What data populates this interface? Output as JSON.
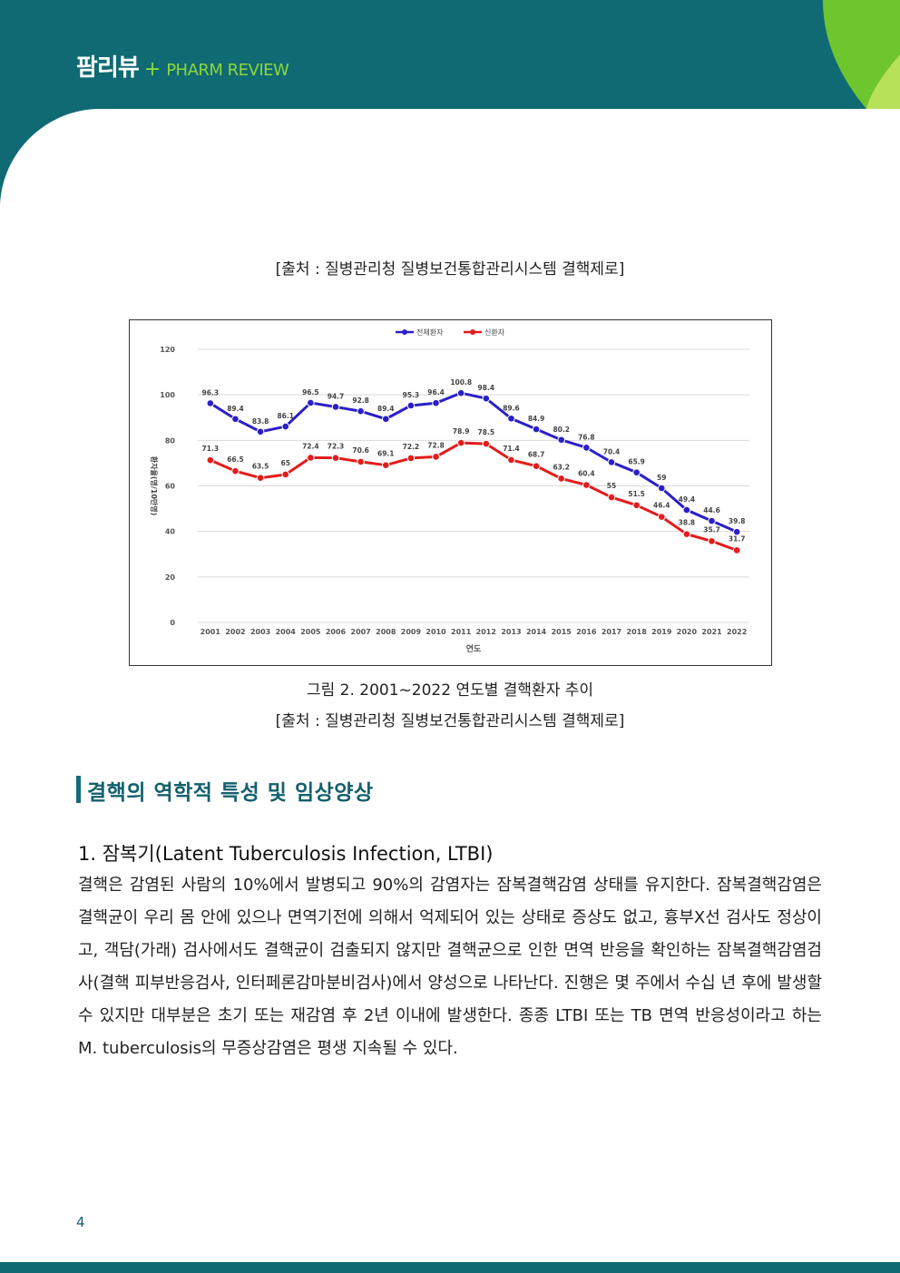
{
  "header": {
    "brand_ko": "팜리뷰",
    "brand_plus": "+",
    "brand_en": "PHARM REVIEW"
  },
  "source_top": "[출처 : 질병관리청 질병보건통합관리시스템 결핵제로]",
  "figure": {
    "caption": "그림 2. 2001~2022 연도별 결핵환자 추이",
    "source": "[출처 : 질병관리청 질병보건통합관리시스템 결핵제로]"
  },
  "section_title": "결핵의 역학적 특성 및 임상양상",
  "subsection": {
    "heading": "1. 잠복기(Latent Tuberculosis Infection, LTBI)",
    "body": "결핵은 감염된 사람의 10%에서 발병되고 90%의 감염자는 잠복결핵감염 상태를 유지한다. 잠복결핵감염은 결핵균이 우리 몸 안에 있으나 면역기전에 의해서 억제되어 있는 상태로 증상도 없고, 흉부X선 검사도 정상이고, 객담(가래) 검사에서도 결핵균이 검출되지 않지만 결핵균으로 인한 면역 반응을 확인하는 잠복결핵감염검사(결핵 피부반응검사, 인터페론감마분비검사)에서 양성으로 나타난다. 진행은 몇 주에서 수십 년 후에 발생할 수 있지만 대부분은 초기 또는 재감염 후 2년 이내에 발생한다. 종종 LTBI 또는 TB 면역 반응성이라고 하는 M. tuberculosis의 무증상감염은 평생 지속될 수 있다."
  },
  "page_number": "4",
  "colors": {
    "header_teal": "#0f6a73",
    "accent_green": "#8ed63a",
    "series_total": "#2a1fc8",
    "series_new": "#e41b1b"
  },
  "chart_data": {
    "type": "line",
    "x": [
      "2001",
      "2002",
      "2003",
      "2004",
      "2005",
      "2006",
      "2007",
      "2008",
      "2009",
      "2010",
      "2011",
      "2012",
      "2013",
      "2014",
      "2015",
      "2016",
      "2017",
      "2018",
      "2019",
      "2020",
      "2021",
      "2022"
    ],
    "series": [
      {
        "name": "전체환자",
        "values": [
          96.3,
          89.4,
          83.8,
          86.1,
          96.5,
          94.7,
          92.8,
          89.4,
          95.3,
          96.4,
          100.8,
          98.4,
          89.6,
          84.9,
          80.2,
          76.8,
          70.4,
          65.9,
          59,
          49.4,
          44.6,
          39.8
        ]
      },
      {
        "name": "신환자",
        "values": [
          71.3,
          66.5,
          63.5,
          65,
          72.4,
          72.3,
          70.6,
          69.1,
          72.2,
          72.8,
          78.9,
          78.5,
          71.4,
          68.7,
          63.2,
          60.4,
          55,
          51.5,
          46.4,
          38.8,
          35.7,
          31.7
        ]
      }
    ],
    "y_ticks": [
      "0",
      "20",
      "40",
      "60",
      "80",
      "100",
      "120"
    ],
    "xlabel": "연도",
    "ylabel": "환자율(명/10만명)",
    "ylim": [
      0,
      120
    ],
    "grid": true,
    "legend": "top-center"
  }
}
